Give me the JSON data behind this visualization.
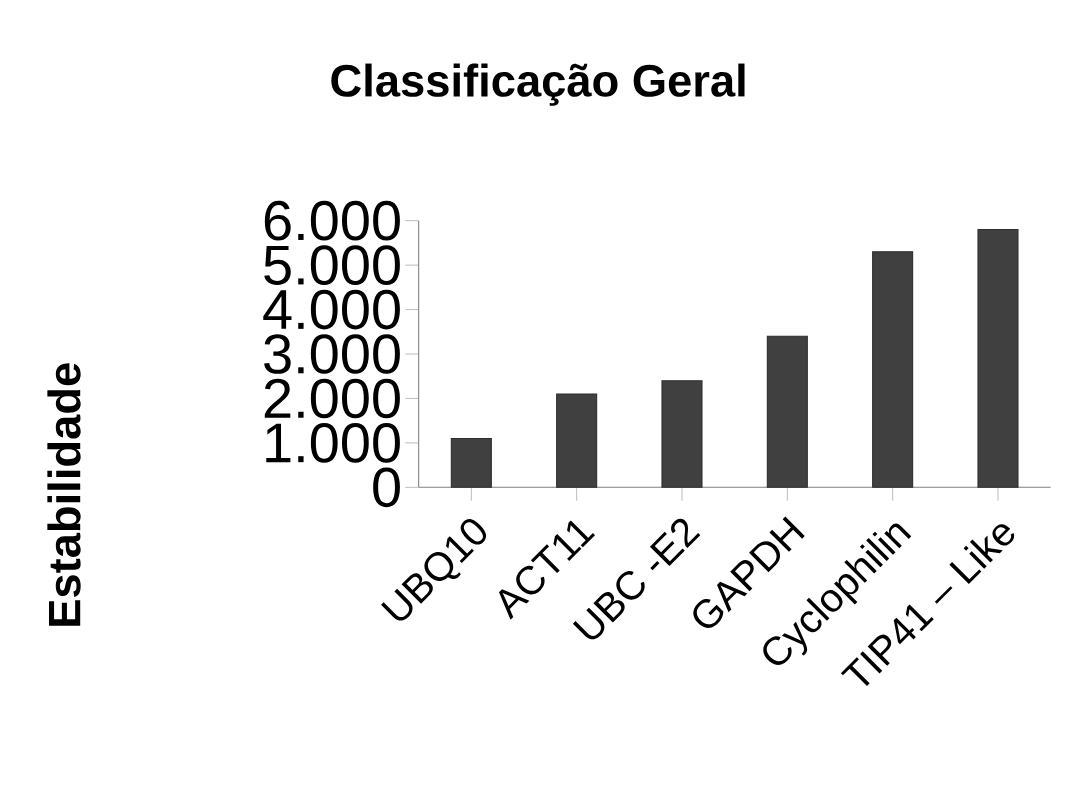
{
  "chart_data": {
    "type": "bar",
    "title": "Classificação Geral",
    "ylabel": "Estabilidade",
    "categories": [
      "UBQ10",
      "ACT11",
      "UBC -E2",
      "GAPDH",
      "Cyclophilin",
      "TIP41 – Like"
    ],
    "values": [
      1100,
      2100,
      2400,
      3400,
      5300,
      5800
    ],
    "color": "#404040",
    "ylim": [
      0,
      6000
    ],
    "yticks": [
      0,
      {
        "value": 1000,
        "label": "1.000"
      },
      {
        "value": 2000,
        "label": "2.000"
      },
      {
        "value": 3000,
        "label": "3.000"
      },
      {
        "value": 4000,
        "label": "4.000"
      },
      {
        "value": 5000,
        "label": "5.000"
      },
      {
        "value": 6000,
        "label": "6.000"
      }
    ]
  }
}
